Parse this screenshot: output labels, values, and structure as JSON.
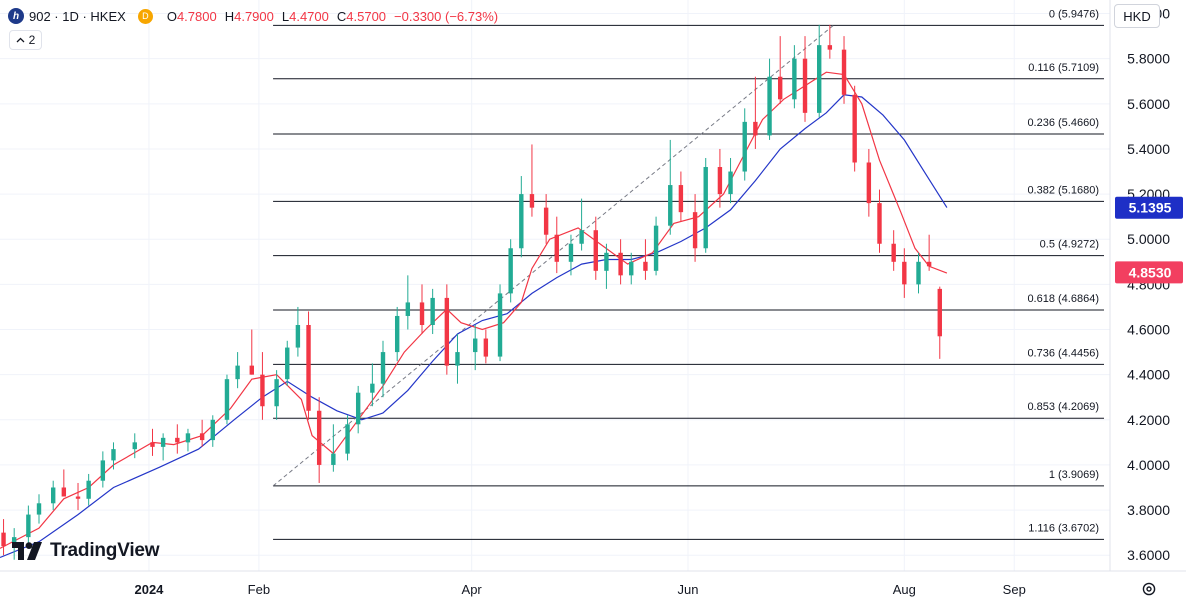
{
  "legend": {
    "symbol_line": "902 · 1D · HKEX",
    "badge": "D",
    "open_label": "O",
    "open": "4.7800",
    "high_label": "H",
    "high": "4.7900",
    "low_label": "L",
    "low": "4.4700",
    "close_label": "C",
    "close": "4.5700",
    "change": "−0.3300 (−6.73%)"
  },
  "indicator_toggle": {
    "count": "2"
  },
  "currency_button": "HKD",
  "brand": "TradingView",
  "colors": {
    "up": "#22ab94",
    "down": "#f23645",
    "ma_fast": "#f23645",
    "ma_slow": "#2436c8",
    "ma_slow_badge": "#1e2fc6",
    "price_badge": "#f23f60",
    "fib_line": "#131722",
    "grid": "#f0f3fa"
  },
  "chart_data": {
    "type": "candlestick",
    "symbol": "902",
    "interval": "1D",
    "exchange": "HKEX",
    "currency": "HKD",
    "y_axis": {
      "ticks": [
        3.6,
        3.8,
        4.0,
        4.2,
        4.4,
        4.6,
        4.8,
        5.0,
        5.2,
        5.4,
        5.6,
        5.8,
        6.0
      ],
      "tick_labels": [
        "3.6000",
        "3.8000",
        "4.0000",
        "4.2000",
        "4.4000",
        "4.6000",
        "4.8000",
        "5.0000",
        "5.2000",
        "5.4000",
        "5.6000",
        "5.8000",
        "6.0000"
      ],
      "ylim": [
        3.53,
        6.06
      ]
    },
    "x_axis": {
      "labels": [
        "2024",
        "Feb",
        "Apr",
        "Jun",
        "Aug",
        "Sep"
      ],
      "label_dates": [
        "2024-01-01",
        "2024-02-01",
        "2024-04-01",
        "2024-06-01",
        "2024-08-01",
        "2024-09-01"
      ],
      "xlim": [
        "2023-11-20",
        "2024-09-28"
      ]
    },
    "price_badges": [
      {
        "label": "5.1395",
        "value": 5.1395,
        "color_key": "ma_slow_badge"
      },
      {
        "label": "4.8530",
        "value": 4.853,
        "color_key": "price_badge"
      }
    ],
    "fibonacci": {
      "start_date": "2024-02-05",
      "end_date": "2024-09-28",
      "anchor_from": {
        "date": "2024-02-05",
        "price": 3.9069
      },
      "anchor_to": {
        "date": "2024-07-12",
        "price": 5.9476
      },
      "levels": [
        {
          "ratio": "0",
          "price": 5.9476,
          "label": "0 (5.9476)"
        },
        {
          "ratio": "0.116",
          "price": 5.7109,
          "label": "0.116 (5.7109)"
        },
        {
          "ratio": "0.236",
          "price": 5.466,
          "label": "0.236 (5.4660)"
        },
        {
          "ratio": "0.382",
          "price": 5.168,
          "label": "0.382 (5.1680)"
        },
        {
          "ratio": "0.5",
          "price": 4.9272,
          "label": "0.5 (4.9272)"
        },
        {
          "ratio": "0.618",
          "price": 4.6864,
          "label": "0.618 (4.6864)"
        },
        {
          "ratio": "0.736",
          "price": 4.4456,
          "label": "0.736 (4.4456)"
        },
        {
          "ratio": "0.853",
          "price": 4.2069,
          "label": "0.853 (4.2069)"
        },
        {
          "ratio": "1",
          "price": 3.9069,
          "label": "1 (3.9069)"
        },
        {
          "ratio": "1.116",
          "price": 3.6702,
          "label": "1.116 (3.6702)"
        }
      ]
    },
    "ma_fast_points": [
      {
        "d": "2023-11-20",
        "v": 3.63
      },
      {
        "d": "2023-12-01",
        "v": 3.72
      },
      {
        "d": "2023-12-08",
        "v": 3.85
      },
      {
        "d": "2023-12-15",
        "v": 3.9
      },
      {
        "d": "2023-12-22",
        "v": 4.0
      },
      {
        "d": "2024-01-02",
        "v": 4.1
      },
      {
        "d": "2024-01-08",
        "v": 4.09
      },
      {
        "d": "2024-01-16",
        "v": 4.13
      },
      {
        "d": "2024-01-24",
        "v": 4.25
      },
      {
        "d": "2024-01-30",
        "v": 4.38
      },
      {
        "d": "2024-02-06",
        "v": 4.4
      },
      {
        "d": "2024-02-13",
        "v": 4.29
      },
      {
        "d": "2024-02-16",
        "v": 4.13
      },
      {
        "d": "2024-02-22",
        "v": 4.05
      },
      {
        "d": "2024-02-29",
        "v": 4.2
      },
      {
        "d": "2024-03-07",
        "v": 4.35
      },
      {
        "d": "2024-03-13",
        "v": 4.5
      },
      {
        "d": "2024-03-19",
        "v": 4.6
      },
      {
        "d": "2024-03-25",
        "v": 4.69
      },
      {
        "d": "2024-03-29",
        "v": 4.63
      },
      {
        "d": "2024-04-04",
        "v": 4.6
      },
      {
        "d": "2024-04-10",
        "v": 4.63
      },
      {
        "d": "2024-04-15",
        "v": 4.72
      },
      {
        "d": "2024-04-18",
        "v": 4.87
      },
      {
        "d": "2024-04-23",
        "v": 5.0
      },
      {
        "d": "2024-05-01",
        "v": 5.05
      },
      {
        "d": "2024-05-08",
        "v": 4.97
      },
      {
        "d": "2024-05-15",
        "v": 4.89
      },
      {
        "d": "2024-05-22",
        "v": 4.94
      },
      {
        "d": "2024-05-28",
        "v": 5.07
      },
      {
        "d": "2024-06-04",
        "v": 5.1
      },
      {
        "d": "2024-06-11",
        "v": 5.2
      },
      {
        "d": "2024-06-17",
        "v": 5.38
      },
      {
        "d": "2024-06-22",
        "v": 5.53
      },
      {
        "d": "2024-06-28",
        "v": 5.62
      },
      {
        "d": "2024-07-04",
        "v": 5.68
      },
      {
        "d": "2024-07-10",
        "v": 5.74
      },
      {
        "d": "2024-07-15",
        "v": 5.73
      },
      {
        "d": "2024-07-20",
        "v": 5.6
      },
      {
        "d": "2024-07-25",
        "v": 5.35
      },
      {
        "d": "2024-07-31",
        "v": 5.12
      },
      {
        "d": "2024-08-04",
        "v": 4.96
      },
      {
        "d": "2024-08-08",
        "v": 4.88
      },
      {
        "d": "2024-08-13",
        "v": 4.85
      }
    ],
    "ma_slow_points": [
      {
        "d": "2023-11-20",
        "v": 3.59
      },
      {
        "d": "2023-12-01",
        "v": 3.66
      },
      {
        "d": "2023-12-12",
        "v": 3.78
      },
      {
        "d": "2023-12-22",
        "v": 3.9
      },
      {
        "d": "2024-01-04",
        "v": 3.99
      },
      {
        "d": "2024-01-15",
        "v": 4.07
      },
      {
        "d": "2024-01-25",
        "v": 4.2
      },
      {
        "d": "2024-02-02",
        "v": 4.3
      },
      {
        "d": "2024-02-09",
        "v": 4.37
      },
      {
        "d": "2024-02-16",
        "v": 4.3
      },
      {
        "d": "2024-02-23",
        "v": 4.24
      },
      {
        "d": "2024-03-01",
        "v": 4.2
      },
      {
        "d": "2024-03-07",
        "v": 4.23
      },
      {
        "d": "2024-03-14",
        "v": 4.33
      },
      {
        "d": "2024-03-21",
        "v": 4.46
      },
      {
        "d": "2024-03-28",
        "v": 4.58
      },
      {
        "d": "2024-04-04",
        "v": 4.64
      },
      {
        "d": "2024-04-11",
        "v": 4.67
      },
      {
        "d": "2024-04-18",
        "v": 4.76
      },
      {
        "d": "2024-04-25",
        "v": 4.83
      },
      {
        "d": "2024-05-02",
        "v": 4.89
      },
      {
        "d": "2024-05-09",
        "v": 4.91
      },
      {
        "d": "2024-05-16",
        "v": 4.91
      },
      {
        "d": "2024-05-23",
        "v": 4.94
      },
      {
        "d": "2024-05-30",
        "v": 4.99
      },
      {
        "d": "2024-06-06",
        "v": 5.05
      },
      {
        "d": "2024-06-13",
        "v": 5.13
      },
      {
        "d": "2024-06-20",
        "v": 5.26
      },
      {
        "d": "2024-06-27",
        "v": 5.4
      },
      {
        "d": "2024-07-04",
        "v": 5.49
      },
      {
        "d": "2024-07-10",
        "v": 5.56
      },
      {
        "d": "2024-07-15",
        "v": 5.64
      },
      {
        "d": "2024-07-20",
        "v": 5.63
      },
      {
        "d": "2024-07-26",
        "v": 5.55
      },
      {
        "d": "2024-08-01",
        "v": 5.44
      },
      {
        "d": "2024-08-07",
        "v": 5.29
      },
      {
        "d": "2024-08-13",
        "v": 5.14
      }
    ],
    "candles": [
      {
        "d": "2023-11-21",
        "o": 3.7,
        "h": 3.76,
        "l": 3.6,
        "c": 3.64
      },
      {
        "d": "2023-11-24",
        "o": 3.64,
        "h": 3.72,
        "l": 3.58,
        "c": 3.68
      },
      {
        "d": "2023-11-28",
        "o": 3.68,
        "h": 3.82,
        "l": 3.64,
        "c": 3.78
      },
      {
        "d": "2023-12-01",
        "o": 3.78,
        "h": 3.87,
        "l": 3.74,
        "c": 3.83
      },
      {
        "d": "2023-12-05",
        "o": 3.83,
        "h": 3.93,
        "l": 3.8,
        "c": 3.9
      },
      {
        "d": "2023-12-08",
        "o": 3.9,
        "h": 3.98,
        "l": 3.86,
        "c": 3.86
      },
      {
        "d": "2023-12-12",
        "o": 3.86,
        "h": 3.92,
        "l": 3.8,
        "c": 3.85
      },
      {
        "d": "2023-12-15",
        "o": 3.85,
        "h": 3.96,
        "l": 3.82,
        "c": 3.93
      },
      {
        "d": "2023-12-19",
        "o": 3.93,
        "h": 4.06,
        "l": 3.9,
        "c": 4.02
      },
      {
        "d": "2023-12-22",
        "o": 4.02,
        "h": 4.1,
        "l": 3.98,
        "c": 4.07
      },
      {
        "d": "2023-12-28",
        "o": 4.07,
        "h": 4.14,
        "l": 4.03,
        "c": 4.1
      },
      {
        "d": "2024-01-02",
        "o": 4.1,
        "h": 4.16,
        "l": 4.04,
        "c": 4.08
      },
      {
        "d": "2024-01-05",
        "o": 4.08,
        "h": 4.14,
        "l": 4.02,
        "c": 4.12
      },
      {
        "d": "2024-01-09",
        "o": 4.12,
        "h": 4.18,
        "l": 4.05,
        "c": 4.1
      },
      {
        "d": "2024-01-12",
        "o": 4.1,
        "h": 4.16,
        "l": 4.06,
        "c": 4.14
      },
      {
        "d": "2024-01-16",
        "o": 4.14,
        "h": 4.2,
        "l": 4.08,
        "c": 4.11
      },
      {
        "d": "2024-01-19",
        "o": 4.11,
        "h": 4.22,
        "l": 4.08,
        "c": 4.2
      },
      {
        "d": "2024-01-23",
        "o": 4.2,
        "h": 4.4,
        "l": 4.18,
        "c": 4.38
      },
      {
        "d": "2024-01-26",
        "o": 4.38,
        "h": 4.5,
        "l": 4.34,
        "c": 4.44
      },
      {
        "d": "2024-01-30",
        "o": 4.44,
        "h": 4.6,
        "l": 4.4,
        "c": 4.4
      },
      {
        "d": "2024-02-02",
        "o": 4.4,
        "h": 4.5,
        "l": 4.2,
        "c": 4.26
      },
      {
        "d": "2024-02-06",
        "o": 4.26,
        "h": 4.42,
        "l": 4.2,
        "c": 4.38
      },
      {
        "d": "2024-02-09",
        "o": 4.38,
        "h": 4.55,
        "l": 4.35,
        "c": 4.52
      },
      {
        "d": "2024-02-12",
        "o": 4.52,
        "h": 4.7,
        "l": 4.48,
        "c": 4.62
      },
      {
        "d": "2024-02-15",
        "o": 4.62,
        "h": 4.68,
        "l": 4.2,
        "c": 4.24
      },
      {
        "d": "2024-02-18",
        "o": 4.24,
        "h": 4.3,
        "l": 3.92,
        "c": 4.0
      },
      {
        "d": "2024-02-22",
        "o": 4.0,
        "h": 4.18,
        "l": 3.97,
        "c": 4.05
      },
      {
        "d": "2024-02-26",
        "o": 4.05,
        "h": 4.22,
        "l": 4.02,
        "c": 4.18
      },
      {
        "d": "2024-02-29",
        "o": 4.18,
        "h": 4.35,
        "l": 4.14,
        "c": 4.32
      },
      {
        "d": "2024-03-04",
        "o": 4.32,
        "h": 4.45,
        "l": 4.26,
        "c": 4.36
      },
      {
        "d": "2024-03-07",
        "o": 4.36,
        "h": 4.55,
        "l": 4.3,
        "c": 4.5
      },
      {
        "d": "2024-03-11",
        "o": 4.5,
        "h": 4.7,
        "l": 4.46,
        "c": 4.66
      },
      {
        "d": "2024-03-14",
        "o": 4.66,
        "h": 4.84,
        "l": 4.6,
        "c": 4.72
      },
      {
        "d": "2024-03-18",
        "o": 4.72,
        "h": 4.8,
        "l": 4.58,
        "c": 4.62
      },
      {
        "d": "2024-03-21",
        "o": 4.62,
        "h": 4.78,
        "l": 4.58,
        "c": 4.74
      },
      {
        "d": "2024-03-25",
        "o": 4.74,
        "h": 4.8,
        "l": 4.4,
        "c": 4.44
      },
      {
        "d": "2024-03-28",
        "o": 4.44,
        "h": 4.58,
        "l": 4.36,
        "c": 4.5
      },
      {
        "d": "2024-04-02",
        "o": 4.5,
        "h": 4.62,
        "l": 4.42,
        "c": 4.56
      },
      {
        "d": "2024-04-05",
        "o": 4.56,
        "h": 4.6,
        "l": 4.45,
        "c": 4.48
      },
      {
        "d": "2024-04-09",
        "o": 4.48,
        "h": 4.8,
        "l": 4.46,
        "c": 4.76
      },
      {
        "d": "2024-04-12",
        "o": 4.76,
        "h": 5.0,
        "l": 4.72,
        "c": 4.96
      },
      {
        "d": "2024-04-15",
        "o": 4.96,
        "h": 5.28,
        "l": 4.92,
        "c": 5.2
      },
      {
        "d": "2024-04-18",
        "o": 5.2,
        "h": 5.42,
        "l": 5.1,
        "c": 5.14
      },
      {
        "d": "2024-04-22",
        "o": 5.14,
        "h": 5.2,
        "l": 4.98,
        "c": 5.02
      },
      {
        "d": "2024-04-25",
        "o": 5.02,
        "h": 5.1,
        "l": 4.85,
        "c": 4.9
      },
      {
        "d": "2024-04-29",
        "o": 4.9,
        "h": 5.02,
        "l": 4.84,
        "c": 4.98
      },
      {
        "d": "2024-05-02",
        "o": 4.98,
        "h": 5.18,
        "l": 4.95,
        "c": 5.04
      },
      {
        "d": "2024-05-06",
        "o": 5.04,
        "h": 5.1,
        "l": 4.82,
        "c": 4.86
      },
      {
        "d": "2024-05-09",
        "o": 4.86,
        "h": 4.98,
        "l": 4.78,
        "c": 4.94
      },
      {
        "d": "2024-05-13",
        "o": 4.94,
        "h": 5.0,
        "l": 4.8,
        "c": 4.84
      },
      {
        "d": "2024-05-16",
        "o": 4.84,
        "h": 4.94,
        "l": 4.8,
        "c": 4.9
      },
      {
        "d": "2024-05-20",
        "o": 4.9,
        "h": 5.0,
        "l": 4.82,
        "c": 4.86
      },
      {
        "d": "2024-05-23",
        "o": 4.86,
        "h": 5.1,
        "l": 4.84,
        "c": 5.06
      },
      {
        "d": "2024-05-27",
        "o": 5.06,
        "h": 5.44,
        "l": 5.02,
        "c": 5.24
      },
      {
        "d": "2024-05-30",
        "o": 5.24,
        "h": 5.3,
        "l": 5.08,
        "c": 5.12
      },
      {
        "d": "2024-06-03",
        "o": 5.12,
        "h": 5.2,
        "l": 4.9,
        "c": 4.96
      },
      {
        "d": "2024-06-06",
        "o": 4.96,
        "h": 5.36,
        "l": 4.94,
        "c": 5.32
      },
      {
        "d": "2024-06-10",
        "o": 5.32,
        "h": 5.4,
        "l": 5.14,
        "c": 5.2
      },
      {
        "d": "2024-06-13",
        "o": 5.2,
        "h": 5.36,
        "l": 5.16,
        "c": 5.3
      },
      {
        "d": "2024-06-17",
        "o": 5.3,
        "h": 5.58,
        "l": 5.26,
        "c": 5.52
      },
      {
        "d": "2024-06-20",
        "o": 5.52,
        "h": 5.72,
        "l": 5.4,
        "c": 5.46
      },
      {
        "d": "2024-06-24",
        "o": 5.46,
        "h": 5.8,
        "l": 5.44,
        "c": 5.72
      },
      {
        "d": "2024-06-27",
        "o": 5.72,
        "h": 5.9,
        "l": 5.6,
        "c": 5.62
      },
      {
        "d": "2024-07-01",
        "o": 5.62,
        "h": 5.86,
        "l": 5.58,
        "c": 5.8
      },
      {
        "d": "2024-07-04",
        "o": 5.8,
        "h": 5.9,
        "l": 5.52,
        "c": 5.56
      },
      {
        "d": "2024-07-08",
        "o": 5.56,
        "h": 5.95,
        "l": 5.54,
        "c": 5.86
      },
      {
        "d": "2024-07-11",
        "o": 5.86,
        "h": 5.95,
        "l": 5.8,
        "c": 5.84
      },
      {
        "d": "2024-07-15",
        "o": 5.84,
        "h": 5.9,
        "l": 5.6,
        "c": 5.64
      },
      {
        "d": "2024-07-18",
        "o": 5.64,
        "h": 5.68,
        "l": 5.3,
        "c": 5.34
      },
      {
        "d": "2024-07-22",
        "o": 5.34,
        "h": 5.4,
        "l": 5.1,
        "c": 5.16
      },
      {
        "d": "2024-07-25",
        "o": 5.16,
        "h": 5.22,
        "l": 4.94,
        "c": 4.98
      },
      {
        "d": "2024-07-29",
        "o": 4.98,
        "h": 5.04,
        "l": 4.86,
        "c": 4.9
      },
      {
        "d": "2024-08-01",
        "o": 4.9,
        "h": 4.96,
        "l": 4.74,
        "c": 4.8
      },
      {
        "d": "2024-08-05",
        "o": 4.8,
        "h": 4.94,
        "l": 4.76,
        "c": 4.9
      },
      {
        "d": "2024-08-08",
        "o": 4.9,
        "h": 5.02,
        "l": 4.86,
        "c": 4.88
      },
      {
        "d": "2024-08-11",
        "o": 4.78,
        "h": 4.79,
        "l": 4.47,
        "c": 4.57
      }
    ]
  }
}
